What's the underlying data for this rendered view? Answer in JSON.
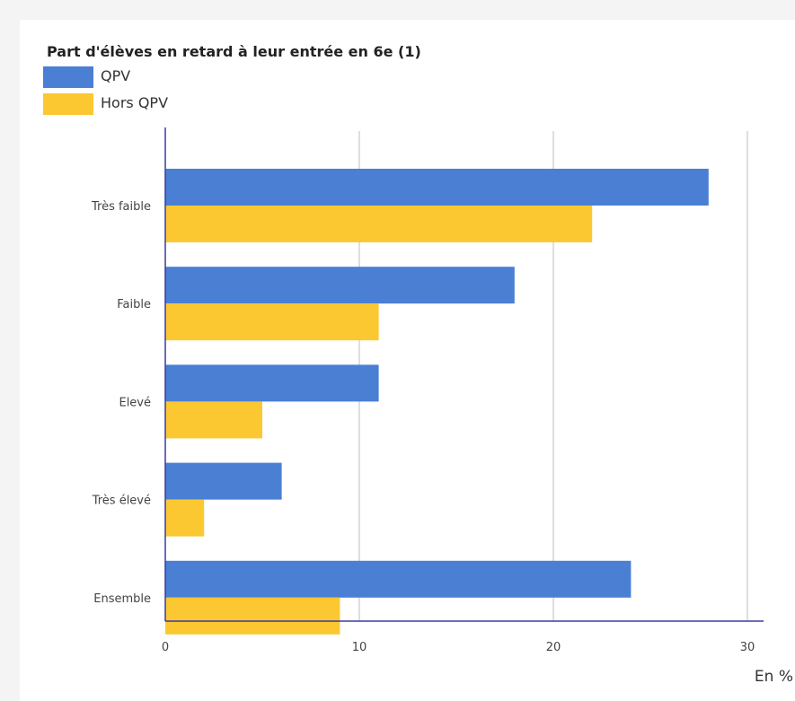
{
  "chart_data": {
    "type": "bar",
    "orientation": "horizontal",
    "title": "Part d'élèves en retard à leur entrée en 6e (1)",
    "categories": [
      "Très faible",
      "Faible",
      "Elevé",
      "Très élevé",
      "Ensemble"
    ],
    "series": [
      {
        "name": "QPV",
        "color": "#4a7fd4",
        "values": [
          28,
          18,
          11,
          6,
          24
        ]
      },
      {
        "name": "Hors QPV",
        "color": "#fbc831",
        "values": [
          22,
          11,
          5,
          2,
          9
        ]
      }
    ],
    "xlim": [
      0,
      30
    ],
    "xticks": [
      "0",
      "10",
      "20",
      "30"
    ],
    "unit_label": "En %",
    "grid": true,
    "legend_position": "top-left"
  }
}
